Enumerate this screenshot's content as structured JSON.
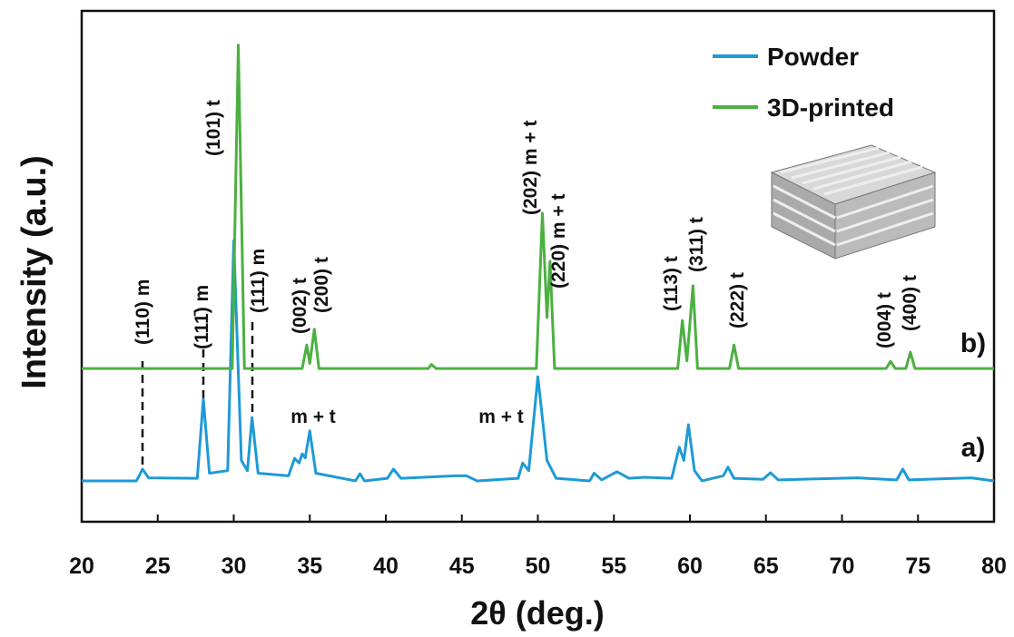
{
  "chart_data": {
    "type": "line",
    "x_label": "2θ (deg.)",
    "y_label": "Intensity (a.u.)",
    "xlim": [
      20,
      80
    ],
    "xticks": [
      20,
      25,
      30,
      35,
      40,
      45,
      50,
      55,
      60,
      65,
      70,
      75,
      80
    ],
    "ylim": [
      0,
      100
    ],
    "legend": "upper right",
    "series": [
      {
        "name": "Powder",
        "color": "#1e9ad6",
        "x": [
          20,
          23.6,
          24,
          24.4,
          27.6,
          28,
          28.4,
          29.6,
          30,
          30.5,
          30.9,
          31.2,
          31.6,
          33.6,
          34,
          34.3,
          34.5,
          34.7,
          35,
          35.4,
          38,
          38.3,
          38.6,
          40.1,
          40.5,
          41,
          44.5,
          45.3,
          46,
          48.7,
          49,
          49.4,
          50,
          50.6,
          51.2,
          53.4,
          53.7,
          54.2,
          55.2,
          56,
          57,
          58.8,
          59.3,
          59.6,
          59.9,
          60.3,
          60.8,
          62.2,
          62.5,
          62.9,
          64.8,
          65.3,
          65.8,
          71,
          73.6,
          74,
          74.4,
          78.5,
          80
        ],
        "values": [
          8,
          8,
          10.3,
          8.6,
          8.5,
          24,
          9.5,
          10,
          55,
          12,
          10,
          20.4,
          9.5,
          9,
          12.4,
          11.5,
          13.3,
          12.5,
          17.8,
          9.5,
          8,
          9.4,
          8,
          8.5,
          10.3,
          8.5,
          9,
          9,
          8,
          8.5,
          11.5,
          10,
          28.4,
          12,
          8.5,
          8,
          9.5,
          8.2,
          9.8,
          8.5,
          8.7,
          8.5,
          14.6,
          12,
          19,
          10,
          8,
          9,
          10.7,
          8.5,
          8.3,
          9.6,
          8.2,
          8.6,
          8.2,
          10.3,
          8.2,
          8.6,
          8
        ]
      },
      {
        "name": "3D-printed",
        "color": "#4cb040",
        "x": [
          20,
          29.9,
          30.3,
          30.7,
          34.5,
          34.8,
          35,
          35.3,
          35.6,
          42.8,
          43,
          43.3,
          49.9,
          50.3,
          50.6,
          50.8,
          51.1,
          59.2,
          59.5,
          59.8,
          60.2,
          60.5,
          62.6,
          62.9,
          63.2,
          72.9,
          73.2,
          73.5,
          74.2,
          74.5,
          74.8,
          80
        ],
        "values": [
          30,
          30,
          93.3,
          30,
          30,
          34.6,
          31,
          37.7,
          30,
          30,
          30.8,
          30,
          30,
          60.4,
          40,
          51,
          30,
          30,
          39.4,
          31.5,
          46.2,
          30,
          30,
          34.6,
          30,
          30,
          31.4,
          30,
          30,
          33.2,
          30,
          30
        ]
      }
    ],
    "annotations": [
      "(110) m",
      "(111̄) m",
      "(101) t",
      "(111) m",
      "(002) t",
      "(200) t",
      "(202) m + t",
      "(220) m + t",
      "(113) t",
      "(311) t",
      "(222) t",
      "(004) t",
      "(400) t",
      "m + t",
      "m + t",
      "b)",
      "a)"
    ]
  }
}
